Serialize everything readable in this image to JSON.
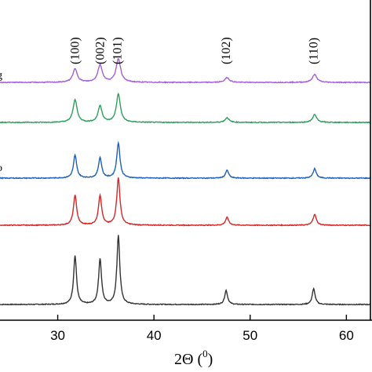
{
  "chart_data": {
    "type": "line",
    "xlabel_main": "2Θ (",
    "xlabel_sup": "0",
    "xlabel_close": ")",
    "xlim": [
      24,
      62.5
    ],
    "xticks": [
      30,
      40,
      50,
      60
    ],
    "xtick_labels": [
      "30",
      "40",
      "50",
      "60"
    ],
    "peak_labels": [
      {
        "text": "(100)",
        "x": 31.8
      },
      {
        "text": "(002)",
        "x": 34.4
      },
      {
        "text": "(101)",
        "x": 36.2
      },
      {
        "text": "(102)",
        "x": 47.5
      },
      {
        "text": "(110)",
        "x": 56.6
      }
    ],
    "partial_labels": [
      "g",
      "o"
    ],
    "series": [
      {
        "color": "#333333",
        "peaks": [
          [
            31.8,
            62
          ],
          [
            34.4,
            58
          ],
          [
            36.3,
            88
          ],
          [
            47.5,
            18
          ],
          [
            56.6,
            20
          ]
        ],
        "width": 0.18
      },
      {
        "color": "#d62728",
        "peaks": [
          [
            31.8,
            38
          ],
          [
            34.4,
            38
          ],
          [
            36.3,
            60
          ],
          [
            47.6,
            10
          ],
          [
            56.7,
            14
          ]
        ],
        "width": 0.2
      },
      {
        "color": "#1f5fbf",
        "peaks": [
          [
            31.8,
            29
          ],
          [
            34.4,
            26
          ],
          [
            36.3,
            45
          ],
          [
            47.6,
            10
          ],
          [
            56.7,
            12
          ]
        ],
        "width": 0.2
      },
      {
        "color": "#2ca05a",
        "peaks": [
          [
            31.8,
            29
          ],
          [
            34.4,
            21
          ],
          [
            36.3,
            36
          ],
          [
            47.6,
            6
          ],
          [
            56.7,
            10
          ]
        ],
        "width": 0.25
      },
      {
        "color": "#a35fd8",
        "peaks": [
          [
            31.8,
            17
          ],
          [
            34.4,
            22
          ],
          [
            36.3,
            30
          ],
          [
            47.6,
            6
          ],
          [
            56.7,
            10
          ]
        ],
        "width": 0.28
      }
    ]
  }
}
